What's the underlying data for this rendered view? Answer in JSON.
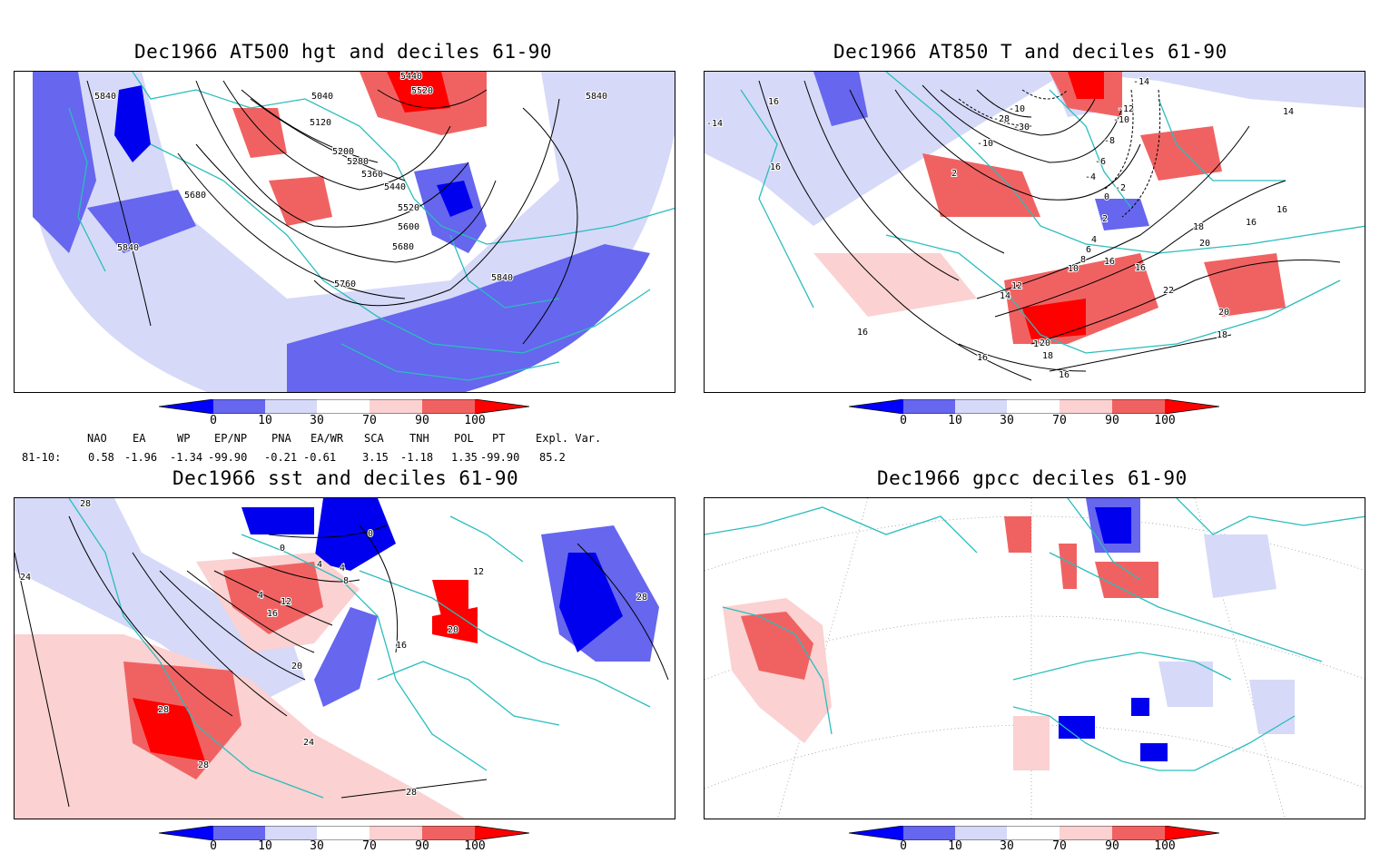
{
  "panels": {
    "p1": {
      "title": "Dec1966 AT500 hgt and deciles 61-90",
      "contour_labels": [
        "5840",
        "5040",
        "5440",
        "5520",
        "5120",
        "5200",
        "5280",
        "5360",
        "5440",
        "5520",
        "5600",
        "5680",
        "5680",
        "5840",
        "5760",
        "5840",
        "5840"
      ]
    },
    "p2": {
      "title": "Dec1966 AT850 T and deciles 61-90",
      "contour_labels": [
        "16",
        "-14",
        "16",
        "-14",
        "-10",
        "-28",
        "-30",
        "-10",
        "-12",
        "-10",
        "-8",
        "-6",
        "-4",
        "-2",
        "0",
        "2",
        "2",
        "4",
        "6",
        "8",
        "10",
        "12",
        "14",
        "16",
        "18",
        "20",
        "16",
        "16",
        "14",
        "16",
        "18",
        "20",
        "20",
        "18",
        "16",
        "22",
        "16",
        "18",
        "16"
      ]
    },
    "p3": {
      "title": "Dec1966 sst and deciles 61-90",
      "contour_labels": [
        "28",
        "24",
        "0",
        "0",
        "4",
        "4",
        "8",
        "4",
        "12",
        "16",
        "20",
        "24",
        "28",
        "28",
        "28",
        "16",
        "20",
        "12",
        "28"
      ]
    },
    "p4": {
      "title": "Dec1966 gpcc deciles 61-90"
    }
  },
  "colorbar": {
    "ticks": [
      "0",
      "10",
      "30",
      "70",
      "90",
      "100"
    ],
    "colors": [
      "#0000ff",
      "#6666ee",
      "#d6d9f8",
      "#ffffff",
      "#fbd1d1",
      "#f06262",
      "#ff0000"
    ]
  },
  "indices": {
    "names": [
      "NAO",
      "EA",
      "WP",
      "EP/NP",
      "PNA",
      "EA/WR",
      "SCA",
      "TNH",
      "POL",
      "PT",
      "Expl. Var."
    ],
    "row_label": "81-10:",
    "values": [
      "0.58",
      "-1.96",
      "-1.34",
      "-99.90",
      "-0.21",
      "-0.61",
      "3.15",
      "-1.18",
      "1.35",
      "-99.90",
      "85.2"
    ]
  },
  "map_colors": {
    "coast": "#2bbdbd",
    "grid": "#999999"
  }
}
